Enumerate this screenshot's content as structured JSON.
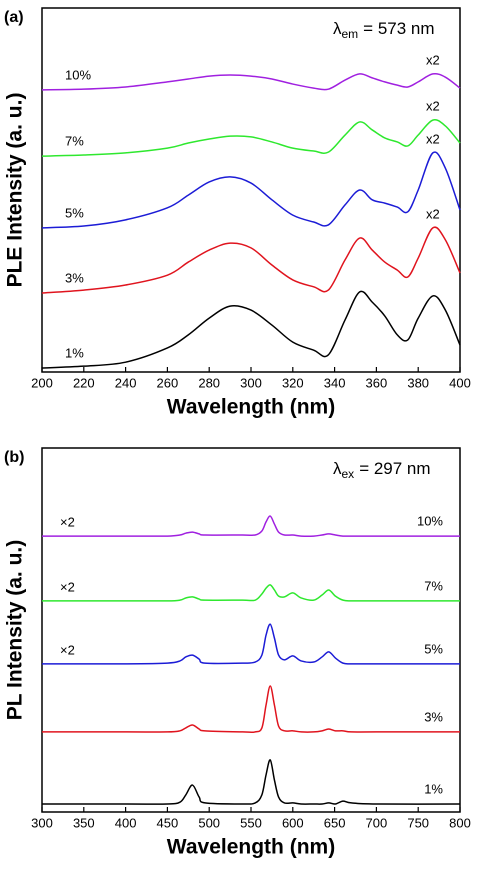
{
  "chart_data": [
    {
      "type": "line",
      "panel_label": "(a)",
      "xlabel": "Wavelength (nm)",
      "ylabel": "PLE Intensity (a. u.)",
      "annotation": {
        "symbol": "λ",
        "subscript": "em",
        "text": "= 573 nm"
      },
      "x": [
        200,
        220,
        240,
        260,
        270,
        280,
        290,
        300,
        310,
        320,
        330,
        337,
        345,
        352,
        358,
        364,
        370,
        375,
        380,
        387,
        393,
        400
      ],
      "xlim": [
        200,
        400
      ],
      "xticks": [
        200,
        220,
        240,
        260,
        280,
        300,
        320,
        340,
        360,
        380,
        400
      ],
      "ylim": [
        0,
        100
      ],
      "series": [
        {
          "name": "1%",
          "color": "#000000",
          "values": [
            1.1,
            1.6,
            2.7,
            6.6,
            10.2,
            14.8,
            18.1,
            17.0,
            12.9,
            8.2,
            6.0,
            4.7,
            14.3,
            22.0,
            19.2,
            15.4,
            10.2,
            8.8,
            14.8,
            20.9,
            17.0,
            7.4
          ]
        },
        {
          "name": "3%",
          "color": "#e0141e",
          "scale_label": "x2",
          "values": [
            21.7,
            22.5,
            23.9,
            26.6,
            30.2,
            33.5,
            35.4,
            34.1,
            29.4,
            25.3,
            23.4,
            22.5,
            30.8,
            36.8,
            33.5,
            30.2,
            28.0,
            26.1,
            31.3,
            39.6,
            36.3,
            27.2
          ]
        },
        {
          "name": "5%",
          "color": "#1c1cd6",
          "scale_label": "x2",
          "values": [
            39.6,
            40.1,
            41.8,
            45.1,
            48.6,
            52.2,
            53.6,
            51.9,
            47.3,
            43.1,
            41.2,
            40.4,
            45.9,
            50.0,
            47.3,
            46.4,
            45.3,
            44.0,
            50.0,
            60.2,
            56.0,
            44.5
          ]
        },
        {
          "name": "7%",
          "color": "#2ee82e",
          "scale_label": "x2",
          "values": [
            59.3,
            59.6,
            60.2,
            61.5,
            62.9,
            64.0,
            64.8,
            64.6,
            63.2,
            61.5,
            60.7,
            60.4,
            65.1,
            68.7,
            66.5,
            64.3,
            63.2,
            62.1,
            65.1,
            69.2,
            67.6,
            62.9
          ]
        },
        {
          "name": "10%",
          "color": "#a020e0",
          "scale_label": "x2",
          "values": [
            77.5,
            77.7,
            78.3,
            79.7,
            80.5,
            81.3,
            81.6,
            81.3,
            80.5,
            79.1,
            78.0,
            77.7,
            80.2,
            81.9,
            80.8,
            79.7,
            78.8,
            78.3,
            79.7,
            81.9,
            81.0,
            78.0
          ]
        }
      ]
    },
    {
      "type": "line",
      "panel_label": "(b)",
      "xlabel": "Wavelength (nm)",
      "ylabel": "PL Intensity (a. u.)",
      "annotation": {
        "symbol": "λ",
        "subscript": "ex",
        "text": "= 297 nm"
      },
      "x": [
        300,
        400,
        450,
        465,
        472,
        480,
        488,
        495,
        540,
        555,
        563,
        568,
        573,
        578,
        583,
        590,
        600,
        610,
        625,
        635,
        643,
        651,
        660,
        670,
        700,
        800
      ],
      "xlim": [
        300,
        800
      ],
      "xticks": [
        300,
        350,
        400,
        450,
        500,
        550,
        600,
        650,
        700,
        750,
        800
      ],
      "ylim": [
        0,
        100
      ],
      "series": [
        {
          "name": "1%",
          "color": "#000000",
          "values": [
            2.2,
            2.2,
            2.2,
            2.7,
            4.7,
            7.4,
            4.1,
            2.5,
            2.2,
            2.5,
            4.7,
            10.2,
            14.3,
            8.8,
            4.1,
            2.5,
            2.5,
            2.2,
            2.2,
            2.2,
            2.5,
            2.2,
            3.0,
            2.5,
            2.2,
            2.2
          ]
        },
        {
          "name": "3%",
          "color": "#e0141e",
          "values": [
            22.0,
            22.0,
            22.0,
            22.3,
            23.1,
            23.9,
            22.8,
            22.3,
            22.0,
            22.0,
            23.1,
            29.4,
            34.6,
            29.4,
            23.6,
            22.3,
            22.3,
            22.0,
            22.0,
            22.3,
            22.8,
            22.3,
            22.3,
            22.0,
            22.0,
            22.0
          ]
        },
        {
          "name": "5%",
          "color": "#1c1cd6",
          "scale_label": "×2",
          "values": [
            40.7,
            40.7,
            40.9,
            41.5,
            42.6,
            43.1,
            42.0,
            40.9,
            40.9,
            41.2,
            43.1,
            48.6,
            51.6,
            47.8,
            43.1,
            41.8,
            42.9,
            41.5,
            41.2,
            42.6,
            44.0,
            42.3,
            40.9,
            40.7,
            40.7,
            40.7
          ]
        },
        {
          "name": "7%",
          "color": "#2ee82e",
          "scale_label": "×2",
          "values": [
            58.0,
            58.0,
            58.0,
            58.2,
            58.8,
            59.1,
            58.5,
            58.2,
            58.2,
            58.2,
            59.9,
            61.5,
            62.4,
            61.0,
            59.3,
            59.1,
            60.2,
            58.8,
            58.2,
            59.6,
            61.0,
            59.3,
            58.2,
            58.0,
            58.0,
            58.0
          ]
        },
        {
          "name": "10%",
          "color": "#a020e0",
          "scale_label": "×2",
          "values": [
            75.8,
            75.8,
            75.8,
            76.1,
            76.6,
            76.9,
            76.4,
            76.1,
            76.1,
            76.1,
            77.2,
            79.7,
            81.3,
            79.1,
            76.9,
            76.1,
            76.1,
            75.8,
            75.8,
            76.1,
            76.4,
            76.1,
            75.8,
            75.8,
            75.8,
            75.8
          ]
        }
      ]
    }
  ]
}
